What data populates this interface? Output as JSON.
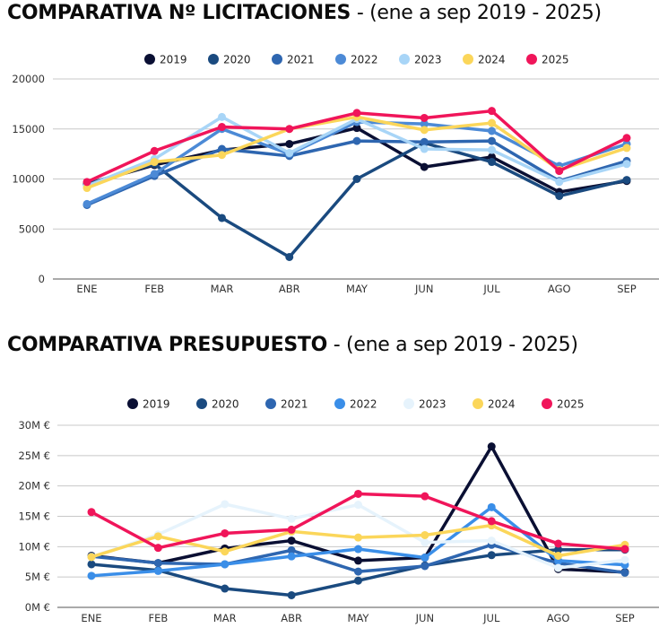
{
  "chart_data": [
    {
      "type": "line",
      "title": "COMPARATIVA Nº LICITACIONES",
      "subtitle": "- (ene a sep 2019 - 2025)",
      "xlabel": "",
      "ylabel": "",
      "ylim": [
        0,
        20000
      ],
      "yticks": [
        0,
        5000,
        10000,
        15000,
        20000
      ],
      "ytick_labels": [
        "0",
        "5000",
        "10000",
        "15000",
        "20000"
      ],
      "grid": true,
      "legend_position": "top-center",
      "categories": [
        "ENE",
        "FEB",
        "MAR",
        "ABR",
        "MAY",
        "JUN",
        "JUL",
        "AGO",
        "SEP"
      ],
      "series": [
        {
          "name": "2019",
          "color": "#0a0f33",
          "values": [
            9500,
            11400,
            12900,
            13500,
            15100,
            11200,
            12200,
            8700,
            9800
          ]
        },
        {
          "name": "2020",
          "color": "#1a4a7f",
          "values": [
            9500,
            11500,
            6100,
            2200,
            10000,
            13600,
            11700,
            8300,
            9900
          ]
        },
        {
          "name": "2021",
          "color": "#2e66b0",
          "values": [
            7400,
            10300,
            13000,
            12300,
            13800,
            13700,
            13800,
            9800,
            11800
          ]
        },
        {
          "name": "2022",
          "color": "#4c8ad6",
          "values": [
            7500,
            10500,
            15000,
            12500,
            15700,
            15500,
            14800,
            11300,
            13500
          ]
        },
        {
          "name": "2023",
          "color": "#a8d5f7",
          "values": [
            9300,
            12000,
            16200,
            12600,
            16000,
            13000,
            12900,
            9700,
            11500
          ]
        },
        {
          "name": "2024",
          "color": "#fbd65a",
          "values": [
            9100,
            11700,
            12400,
            15000,
            16200,
            14900,
            15600,
            10900,
            13100
          ]
        },
        {
          "name": "2025",
          "color": "#f0155a",
          "values": [
            9700,
            12800,
            15200,
            15000,
            16600,
            16100,
            16800,
            10800,
            14100
          ]
        }
      ]
    },
    {
      "type": "line",
      "title": "COMPARATIVA PRESUPUESTO",
      "subtitle": "- (ene a sep 2019 - 2025)",
      "xlabel": "",
      "ylabel": "",
      "ylim": [
        0,
        30
      ],
      "yunit": "M €",
      "yticks": [
        0,
        5,
        10,
        15,
        20,
        25,
        30
      ],
      "ytick_labels": [
        "0M €",
        "5M €",
        "10M €",
        "15M €",
        "20M €",
        "25M €",
        "30M €"
      ],
      "grid": true,
      "legend_position": "top-center",
      "categories": [
        "ENE",
        "FEB",
        "MAR",
        "ABR",
        "MAY",
        "JUN",
        "JUL",
        "AGO",
        "SEP"
      ],
      "series": [
        {
          "name": "2019",
          "color": "#0a0f33",
          "values": [
            8.5,
            7.3,
            9.7,
            11.0,
            7.7,
            8.2,
            26.5,
            6.3,
            5.8
          ]
        },
        {
          "name": "2020",
          "color": "#1a4a7f",
          "values": [
            7.1,
            6.1,
            3.1,
            2.0,
            4.4,
            6.9,
            8.6,
            9.5,
            9.5
          ]
        },
        {
          "name": "2021",
          "color": "#2e66b0",
          "values": [
            8.4,
            7.3,
            7.1,
            9.4,
            5.9,
            6.8,
            10.3,
            7.3,
            5.7
          ]
        },
        {
          "name": "2022",
          "color": "#3a8ee8",
          "values": [
            5.2,
            6.0,
            7.1,
            8.4,
            9.6,
            8.2,
            16.5,
            7.7,
            7.0
          ]
        },
        {
          "name": "2023",
          "color": "#e6f3fc",
          "values": [
            8.3,
            12.0,
            17.0,
            14.6,
            16.9,
            10.7,
            11.0,
            6.5,
            7.8
          ]
        },
        {
          "name": "2024",
          "color": "#fbd65a",
          "values": [
            8.3,
            11.7,
            9.2,
            12.5,
            11.5,
            11.9,
            13.5,
            8.5,
            10.3
          ]
        },
        {
          "name": "2025",
          "color": "#f0155a",
          "values": [
            15.7,
            9.8,
            12.2,
            12.8,
            18.7,
            18.3,
            14.2,
            10.5,
            9.6
          ]
        }
      ]
    }
  ]
}
